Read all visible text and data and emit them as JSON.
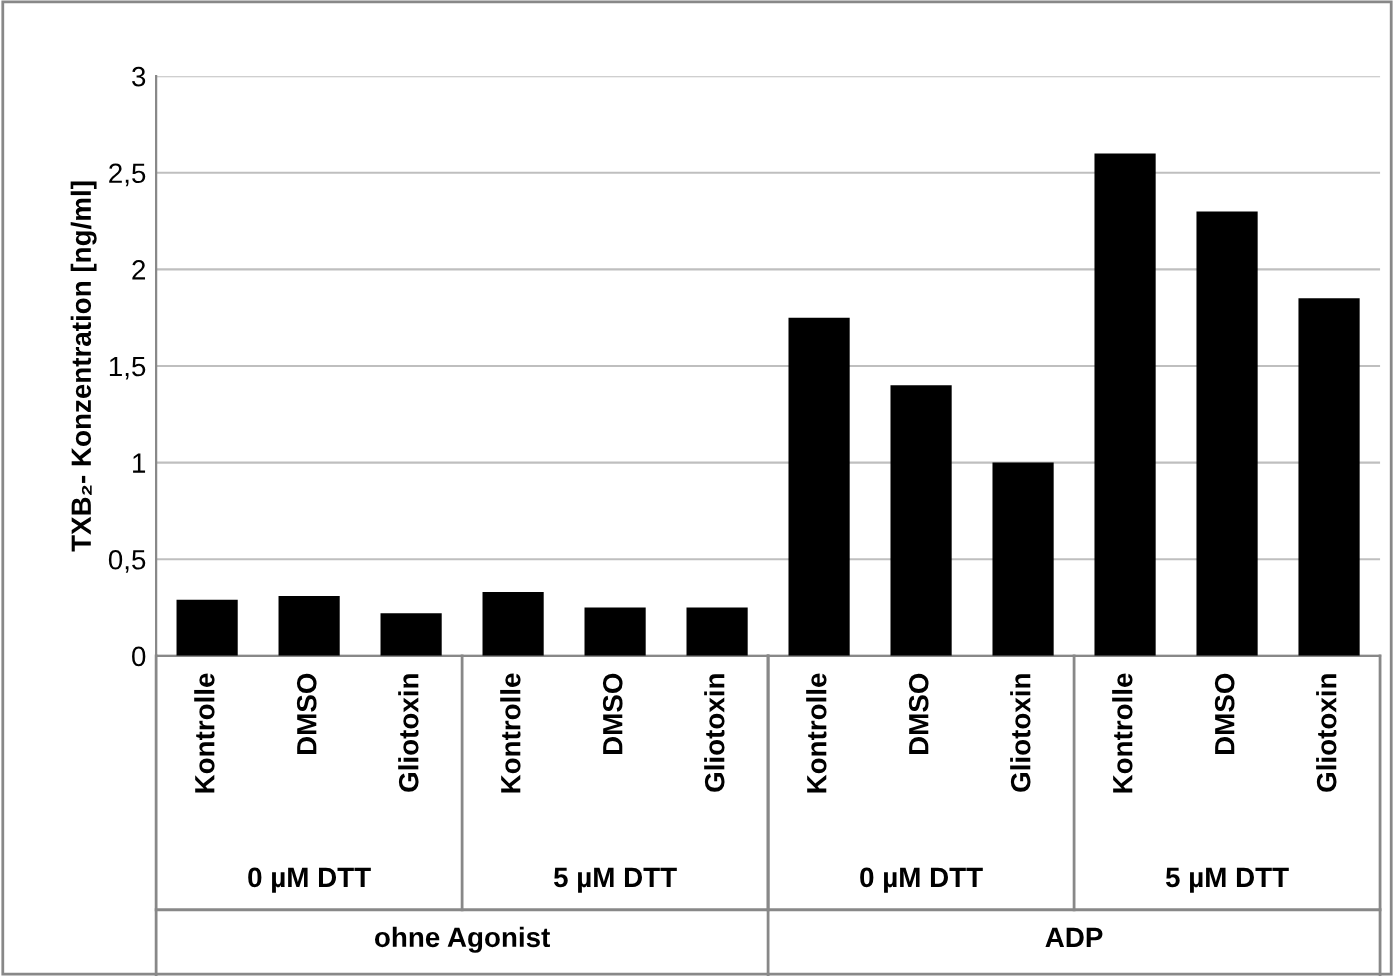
{
  "chart_data": {
    "type": "bar",
    "ylabel": "TXB₂- Konzentration [ng/ml]",
    "categories": [
      "Kontrolle",
      "DMSO",
      "Gliotoxin",
      "Kontrolle",
      "DMSO",
      "Gliotoxin",
      "Kontrolle",
      "DMSO",
      "Gliotoxin",
      "Kontrolle",
      "DMSO",
      "Gliotoxin"
    ],
    "values": [
      0.29,
      0.31,
      0.22,
      0.33,
      0.25,
      0.25,
      1.75,
      1.4,
      1.0,
      2.6,
      2.3,
      1.85
    ],
    "color": "#000000",
    "ylim": [
      0,
      3
    ],
    "yticks": [
      0,
      {
        "value": 0.5,
        "label": "0,5"
      },
      1,
      {
        "value": 1.5,
        "label": "1,5"
      },
      2,
      {
        "value": 2.5,
        "label": "2,5"
      },
      3
    ],
    "grid": "y",
    "annotations": [
      "0 µM DTT",
      "5 µM DTT",
      "0 µM DTT",
      "5 µM DTT",
      "ohne Agonist",
      "ADP"
    ]
  }
}
